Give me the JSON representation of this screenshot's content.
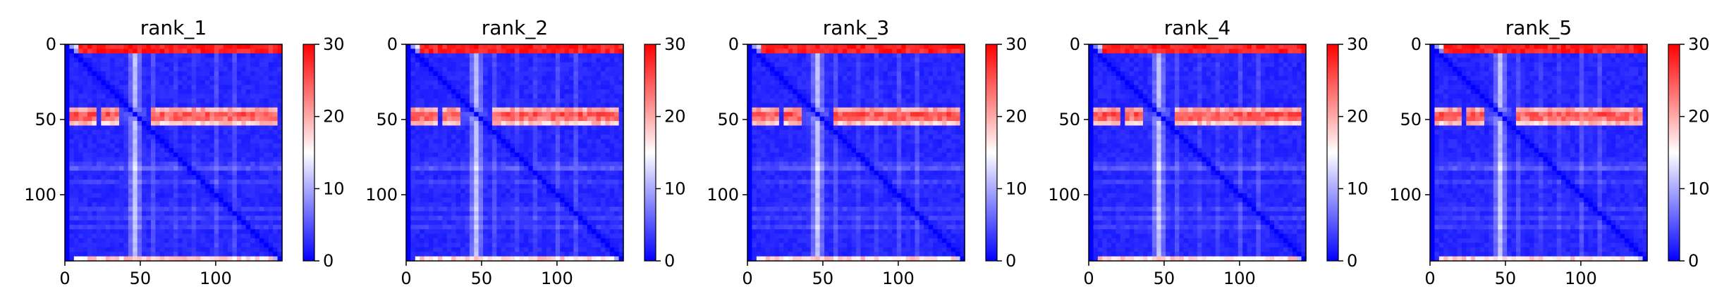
{
  "chart_data": [
    {
      "type": "heatmap",
      "title": "rank_1",
      "xlim": [
        0,
        144
      ],
      "ylim": [
        144,
        0
      ],
      "xticks": [
        0,
        50,
        100
      ],
      "yticks": [
        0,
        50,
        100
      ],
      "colorbar": {
        "min": 0,
        "max": 30,
        "ticks": [
          0,
          10,
          20,
          30
        ],
        "colormap": [
          "#0000ff",
          "#ffffff",
          "#ff0000"
        ]
      }
    },
    {
      "type": "heatmap",
      "title": "rank_2",
      "xlim": [
        0,
        144
      ],
      "ylim": [
        144,
        0
      ],
      "xticks": [
        0,
        50,
        100
      ],
      "yticks": [
        0,
        50,
        100
      ],
      "colorbar": {
        "min": 0,
        "max": 30,
        "ticks": [
          0,
          10,
          20,
          30
        ],
        "colormap": [
          "#0000ff",
          "#ffffff",
          "#ff0000"
        ]
      }
    },
    {
      "type": "heatmap",
      "title": "rank_3",
      "xlim": [
        0,
        144
      ],
      "ylim": [
        144,
        0
      ],
      "xticks": [
        0,
        50,
        100
      ],
      "yticks": [
        0,
        50,
        100
      ],
      "colorbar": {
        "min": 0,
        "max": 30,
        "ticks": [
          0,
          10,
          20,
          30
        ],
        "colormap": [
          "#0000ff",
          "#ffffff",
          "#ff0000"
        ]
      }
    },
    {
      "type": "heatmap",
      "title": "rank_4",
      "xlim": [
        0,
        144
      ],
      "ylim": [
        144,
        0
      ],
      "xticks": [
        0,
        50,
        100
      ],
      "yticks": [
        0,
        50,
        100
      ],
      "colorbar": {
        "min": 0,
        "max": 30,
        "ticks": [
          0,
          10,
          20,
          30
        ],
        "colormap": [
          "#0000ff",
          "#ffffff",
          "#ff0000"
        ]
      }
    },
    {
      "type": "heatmap",
      "title": "rank_5",
      "xlim": [
        0,
        144
      ],
      "ylim": [
        144,
        0
      ],
      "xticks": [
        0,
        50,
        100
      ],
      "yticks": [
        0,
        50,
        100
      ],
      "colorbar": {
        "min": 0,
        "max": 30,
        "ticks": [
          0,
          10,
          20,
          30
        ],
        "colormap": [
          "#0000ff",
          "#ffffff",
          "#ff0000"
        ]
      }
    }
  ]
}
